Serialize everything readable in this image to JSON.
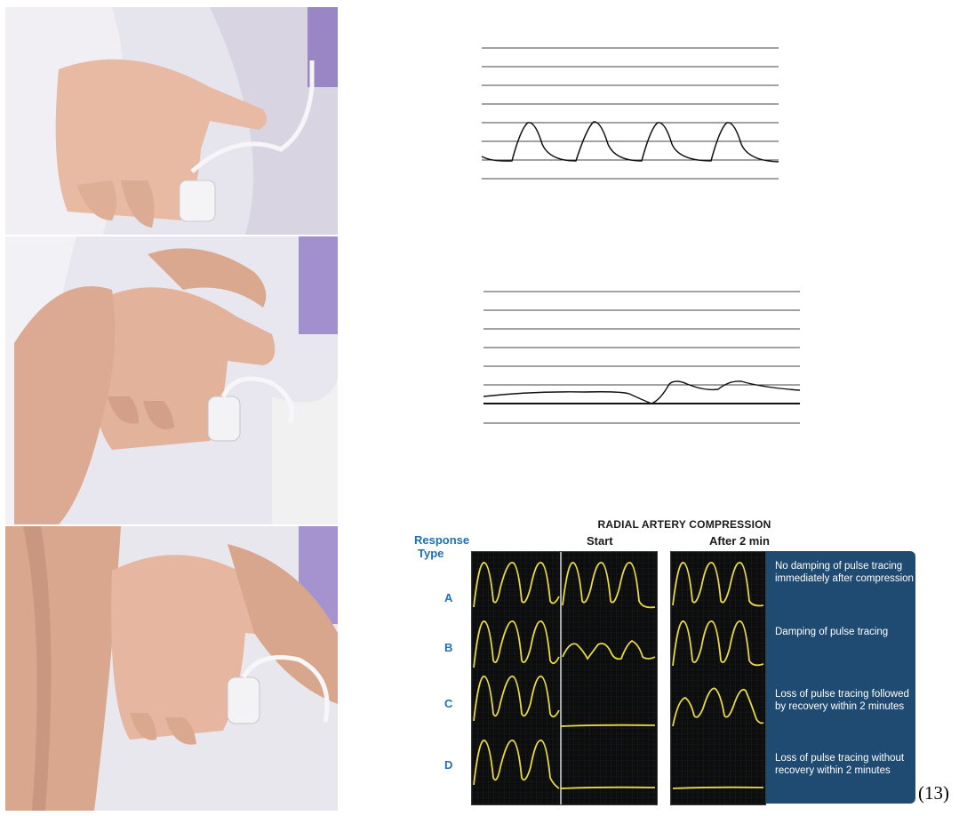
{
  "diagram": {
    "title": "RADIAL ARTERY COMPRESSION",
    "response_type_label_1": "Response",
    "response_type_label_2": "Type",
    "col_start": "Start",
    "col_after": "After 2 min",
    "rows": [
      {
        "letter": "A",
        "description": "No damping of pulse tracing immediately after compression"
      },
      {
        "letter": "B",
        "description": "Damping of pulse tracing"
      },
      {
        "letter": "C",
        "description": "Loss of pulse tracing followed by recovery within 2 minutes"
      },
      {
        "letter": "D",
        "description": "Loss of pulse tracing without recovery within 2 minutes"
      }
    ],
    "reference": "(13)"
  },
  "photos": [
    {
      "subject": "hand with pulse oximeter probe on finger"
    },
    {
      "subject": "examiner compressing radial and ulnar arteries"
    },
    {
      "subject": "examiner releasing ulnar artery compression"
    }
  ],
  "colors": {
    "trace_yellow": "#e8d84a",
    "panel_black": "#0d0d0d",
    "desc_blue": "#1f4a72",
    "label_blue": "#1f6fb5"
  },
  "icons": [
    "pulse-oximeter-probe"
  ]
}
